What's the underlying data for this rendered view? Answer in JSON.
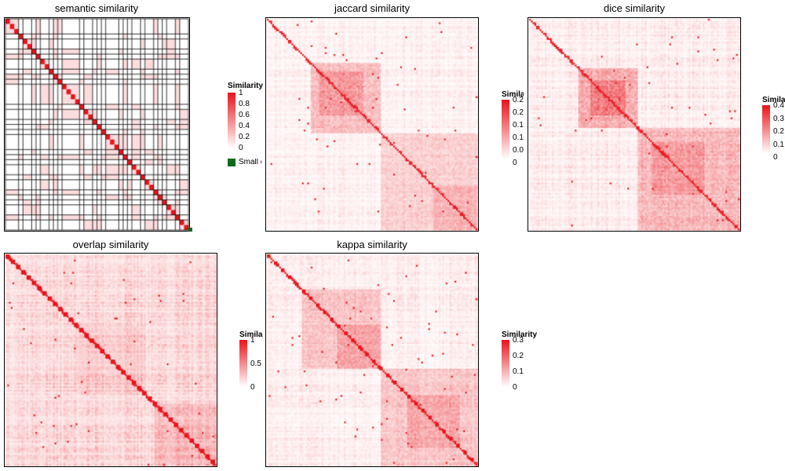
{
  "colors": {
    "high": "#e8141b",
    "low": "#ffffff",
    "small": "#0e6b1e",
    "border": "#000000"
  },
  "legend_title": "Similarity",
  "small_label": "Small clusters",
  "chart_data": [
    {
      "type": "heatmap",
      "title": "semantic similarity",
      "metric": "semantic",
      "n": 28,
      "legend_ticks": [
        "1",
        "0.8",
        "0.6",
        "0.4",
        "0.2",
        "0"
      ],
      "scale_max": 1.0,
      "has_small_cluster": true
    },
    {
      "type": "heatmap",
      "title": "jaccard similarity",
      "metric": "jaccard",
      "n": 120,
      "legend_ticks": [
        "0.2",
        "0.2",
        "0.1",
        "0.1",
        "0.0",
        "0"
      ],
      "scale_max": 0.25
    },
    {
      "type": "heatmap",
      "title": "dice similarity",
      "metric": "dice",
      "n": 120,
      "legend_ticks": [
        "0.4",
        "0.3",
        "0.2",
        "0.1",
        "0"
      ],
      "scale_max": 0.4
    },
    {
      "type": "heatmap",
      "title": "overlap similarity",
      "metric": "overlap",
      "n": 120,
      "legend_ticks": [
        "1",
        "0.5",
        "0"
      ],
      "scale_max": 1.0
    },
    {
      "type": "heatmap",
      "title": "kappa similarity",
      "metric": "kappa",
      "n": 120,
      "legend_ticks": [
        "0.3",
        "0.2",
        "0.1",
        "0"
      ],
      "scale_max": 0.3
    }
  ]
}
